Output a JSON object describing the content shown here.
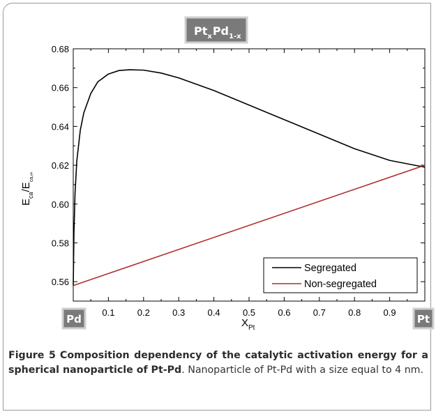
{
  "chart_data": {
    "type": "line",
    "title_badge": {
      "base1": "Pt",
      "sub1": "x",
      "base2": "Pd",
      "sub2": "1-x"
    },
    "xlabel": {
      "base": "X",
      "sub": "Pt"
    },
    "ylabel": {
      "base1": "E",
      "sub1": "ca",
      "mid": "/E",
      "sub2": "ca,∞"
    },
    "xlim": [
      0.0,
      1.0
    ],
    "ylim": [
      0.55,
      0.68
    ],
    "x_ticks": [
      "0.0",
      "0.1",
      "0.2",
      "0.3",
      "0.4",
      "0.5",
      "0.6",
      "0.7",
      "0.8",
      "0.9",
      "1.0"
    ],
    "y_ticks": [
      "0.56",
      "0.58",
      "0.60",
      "0.62",
      "0.64",
      "0.66",
      "0.68"
    ],
    "end_badges": {
      "left": "Pd",
      "right": "Pt"
    },
    "legend_position": "bottom-right",
    "series": [
      {
        "name": "Segregated",
        "color": "#000000",
        "x": [
          0.0,
          0.002,
          0.005,
          0.01,
          0.02,
          0.03,
          0.05,
          0.07,
          0.1,
          0.13,
          0.16,
          0.2,
          0.25,
          0.3,
          0.4,
          0.5,
          0.6,
          0.7,
          0.8,
          0.9,
          1.0
        ],
        "y": [
          0.558,
          0.585,
          0.605,
          0.622,
          0.638,
          0.647,
          0.657,
          0.663,
          0.667,
          0.6688,
          0.6692,
          0.669,
          0.6675,
          0.665,
          0.6585,
          0.651,
          0.6435,
          0.636,
          0.6285,
          0.6225,
          0.619
        ]
      },
      {
        "name": "Non-segregated",
        "color": "#b02a2a",
        "x": [
          0.0,
          1.0
        ],
        "y": [
          0.558,
          0.62
        ]
      }
    ]
  },
  "caption": {
    "figure_label": "Figure 5",
    "bold_title": "Composition dependency of the catalytic activation energy for a spherical nanoparticle of Pt-Pd",
    "body": ". Nanoparticle of Pt-Pd with a size equal to 4 nm."
  }
}
